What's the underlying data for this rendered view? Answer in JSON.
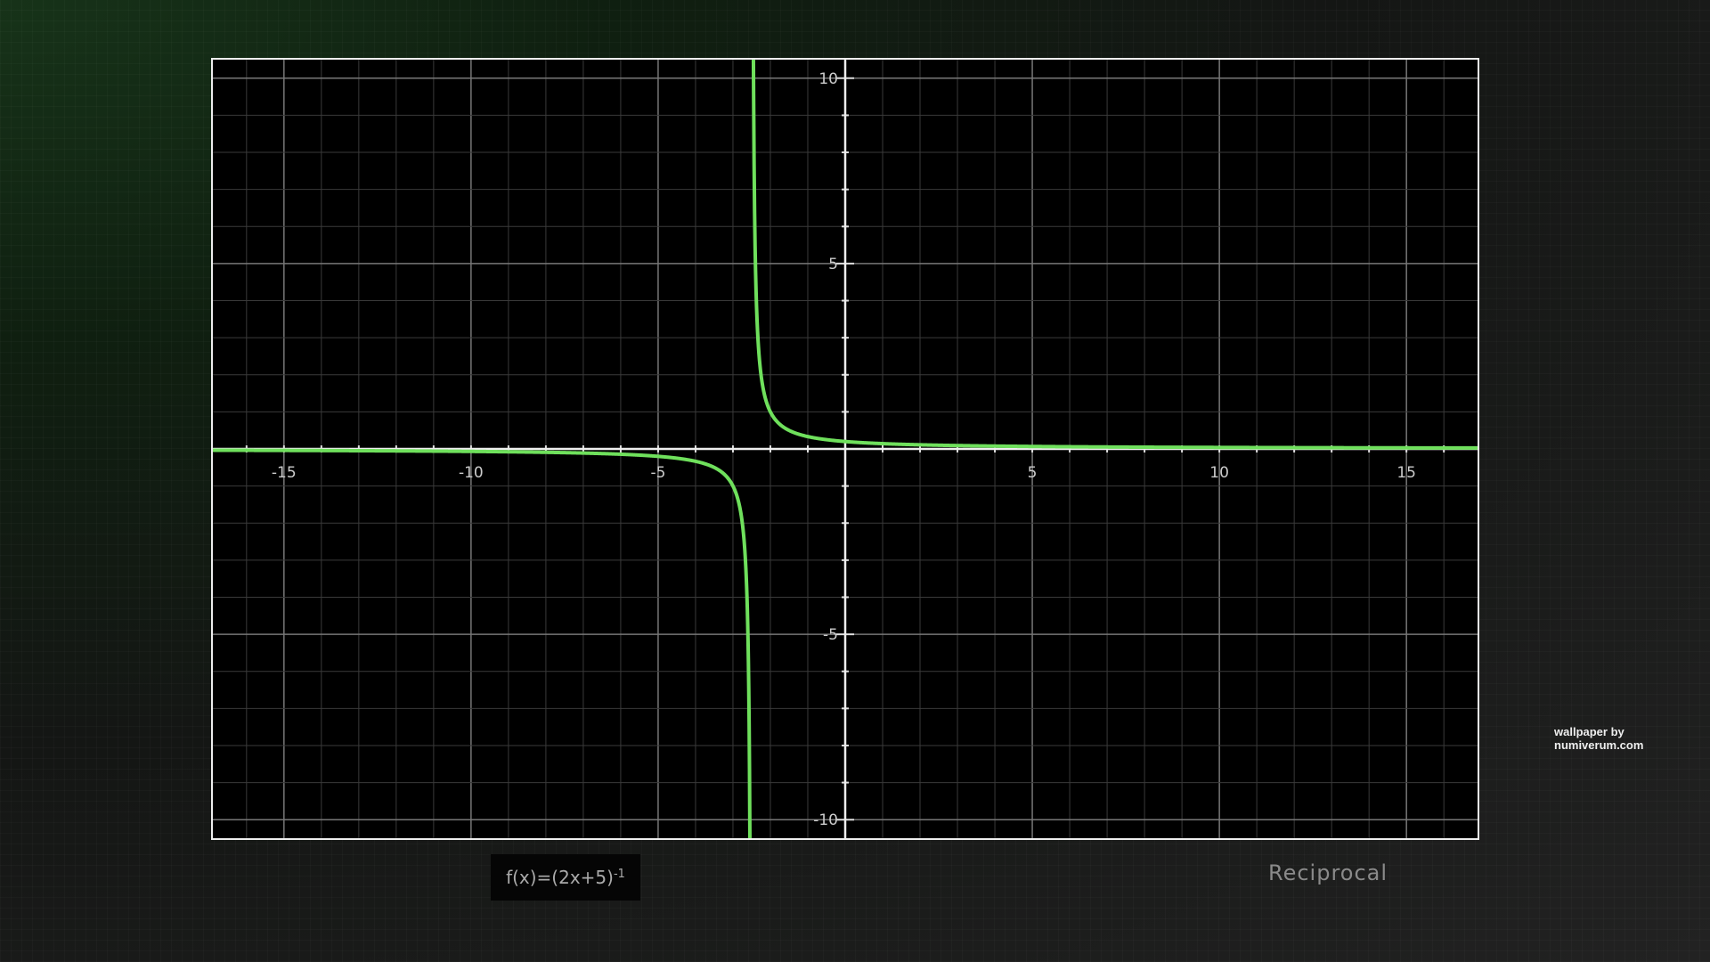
{
  "chart_data": {
    "type": "line",
    "function": "1/(2x+5)",
    "xlim": [
      -16.9,
      16.9
    ],
    "ylim": [
      -10.5,
      10.5
    ],
    "x_ticks": [
      -15,
      -10,
      -5,
      5,
      10,
      15
    ],
    "y_ticks": [
      10,
      5,
      -5,
      -10
    ],
    "grid": true,
    "grid_minor_step": 1,
    "grid_major_step": 5,
    "asymptote_x": -2.5,
    "line_color": "#6fe05c"
  },
  "formula": {
    "base": "f(x)=(2x+5)",
    "exponent": "-1"
  },
  "title": "Reciprocal",
  "credit": "wallpaper by numiverum.com"
}
